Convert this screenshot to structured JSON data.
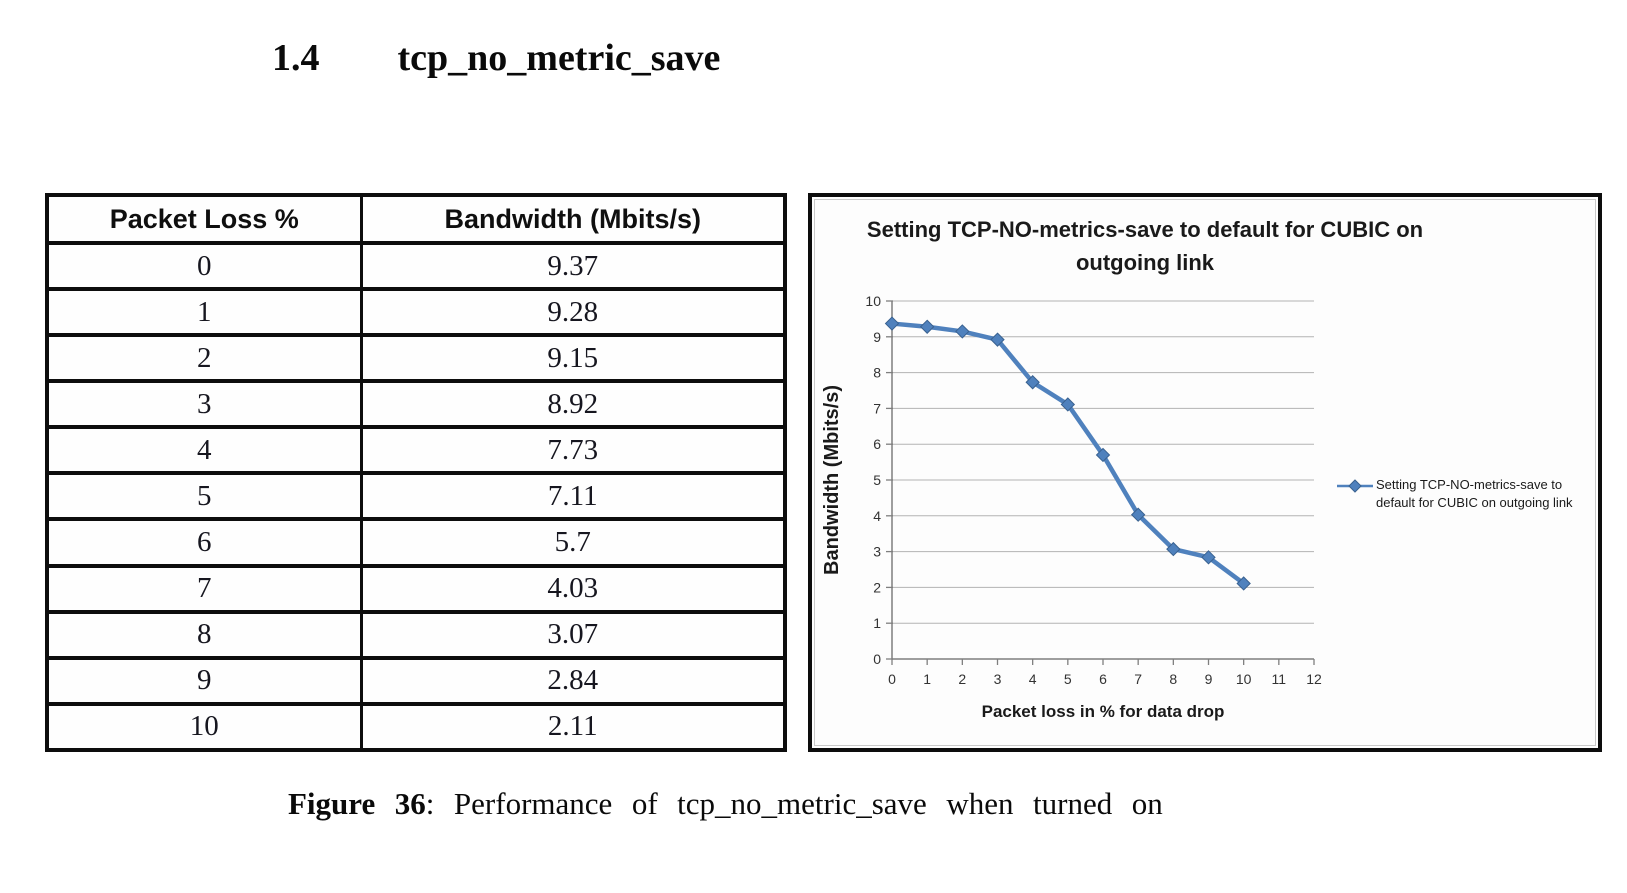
{
  "heading": {
    "number": "1.4",
    "title": "tcp_no_metric_save"
  },
  "table": {
    "columns": [
      "Packet Loss %",
      "Bandwidth (Mbits/s)"
    ],
    "rows": [
      [
        "0",
        "9.37"
      ],
      [
        "1",
        "9.28"
      ],
      [
        "2",
        "9.15"
      ],
      [
        "3",
        "8.92"
      ],
      [
        "4",
        "7.73"
      ],
      [
        "5",
        "7.11"
      ],
      [
        "6",
        "5.7"
      ],
      [
        "7",
        "4.03"
      ],
      [
        "8",
        "3.07"
      ],
      [
        "9",
        "2.84"
      ],
      [
        "10",
        "2.11"
      ]
    ]
  },
  "chart_data": {
    "type": "line",
    "title": "Setting TCP-NO-metrics-save to default for CUBIC on outgoing link",
    "x": [
      0,
      1,
      2,
      3,
      4,
      5,
      6,
      7,
      8,
      9,
      10
    ],
    "series": [
      {
        "name": "Setting TCP-NO-metrics-save  to default for CUBIC  on outgoing link",
        "values": [
          9.37,
          9.28,
          9.15,
          8.92,
          7.73,
          7.11,
          5.7,
          4.03,
          3.07,
          2.84,
          2.11
        ]
      }
    ],
    "xlabel": "Packet loss in % for data drop",
    "ylabel": "Bandwidth (Mbits/s)",
    "xlim": [
      0,
      12
    ],
    "ylim": [
      0,
      10
    ],
    "x_ticks": [
      0,
      1,
      2,
      3,
      4,
      5,
      6,
      7,
      8,
      9,
      10,
      11,
      12
    ],
    "y_ticks": [
      0,
      1,
      2,
      3,
      4,
      5,
      6,
      7,
      8,
      9,
      10
    ],
    "grid": "horizontal",
    "legend_position": "right",
    "marker": "diamond",
    "colors": {
      "line": "#4f81bd",
      "marker_edge": "#39618f",
      "gridline": "#b3b3b3",
      "axis": "#7f7f7f",
      "tick_label": "#333333"
    }
  },
  "caption": {
    "label": "Figure 36",
    "text": ": Performance  of tcp_no_metric_save  when turned on"
  }
}
